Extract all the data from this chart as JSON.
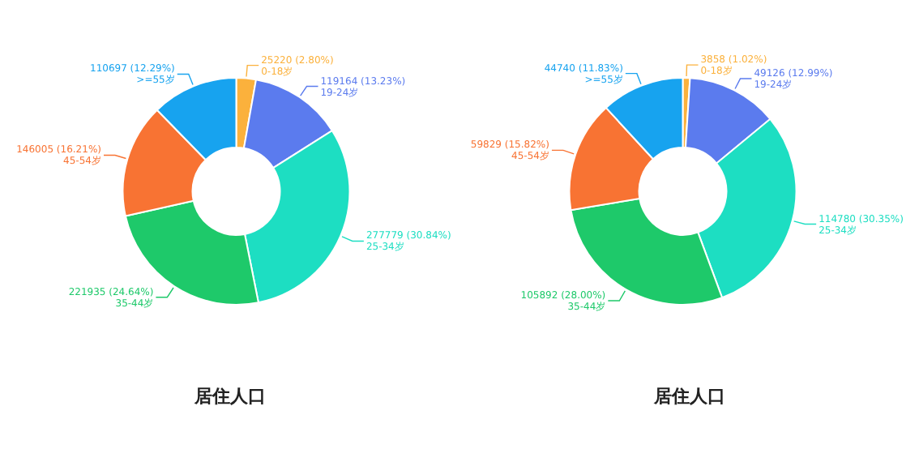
{
  "chart_data": [
    {
      "type": "donut",
      "title": "居住人口",
      "categories": [
        "0-18岁",
        "19-24岁",
        "25-34岁",
        "35-44岁",
        "45-54岁",
        ">=55岁"
      ],
      "values": [
        25220,
        119164,
        277779,
        221935,
        146005,
        110697
      ],
      "value_labels": [
        "25220 (2.80%)",
        "119164 (13.23%)",
        "277779 (30.84%)",
        "221935 (24.64%)",
        "146005 (16.21%)",
        "110697 (12.29%)"
      ],
      "colors": [
        "#fbb13c",
        "#5b7bee",
        "#1ddec2",
        "#1ec96a",
        "#f87333",
        "#17a3ef"
      ]
    },
    {
      "type": "donut",
      "title": "居住人口",
      "categories": [
        "0-18岁",
        "19-24岁",
        "25-34岁",
        "35-44岁",
        "45-54岁",
        ">=55岁"
      ],
      "values": [
        3858,
        49126,
        114780,
        105892,
        59829,
        44740
      ],
      "value_labels": [
        "3858 (1.02%)",
        "49126 (12.99%)",
        "114780 (30.35%)",
        "105892 (28.00%)",
        "59829 (15.82%)",
        "44740 (11.83%)"
      ],
      "colors": [
        "#fbb13c",
        "#5b7bee",
        "#1ddec2",
        "#1ec96a",
        "#f87333",
        "#17a3ef"
      ]
    }
  ]
}
